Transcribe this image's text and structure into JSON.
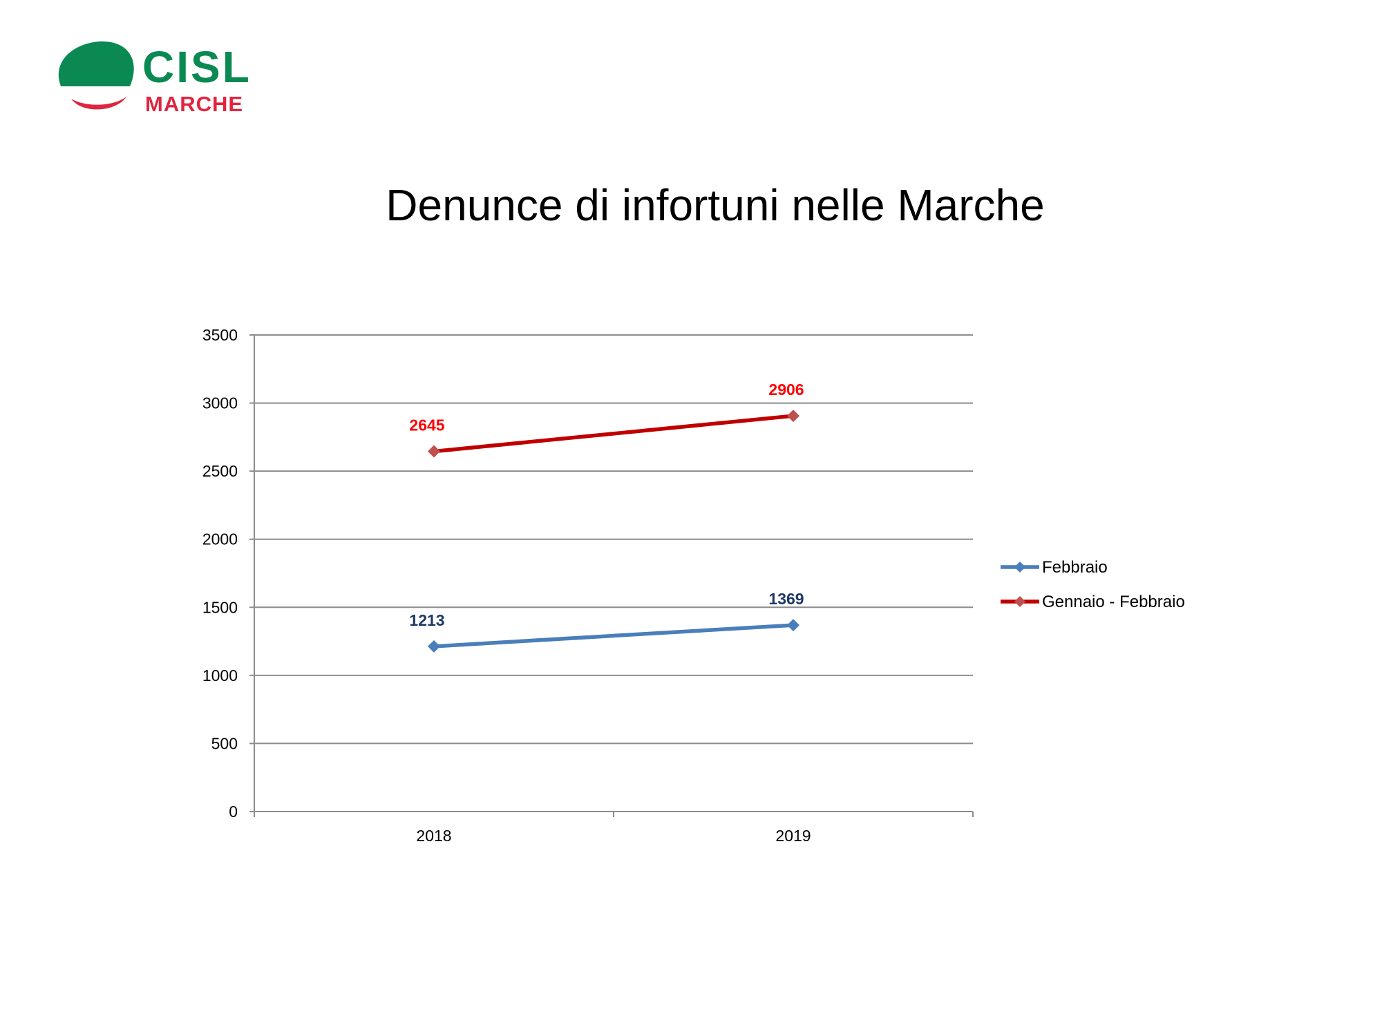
{
  "logo": {
    "name": "CISL",
    "region": "MARCHE"
  },
  "page": {
    "title": "Denunce di infortuni nelle Marche"
  },
  "chart_data": {
    "type": "line",
    "title": "",
    "xlabel": "",
    "ylabel": "",
    "categories": [
      "2018",
      "2019"
    ],
    "ylim": [
      0,
      3500
    ],
    "yticks": [
      0,
      500,
      1000,
      1500,
      2000,
      2500,
      3000,
      3500
    ],
    "grid": true,
    "legend": "right",
    "series": [
      {
        "name": "Febbraio",
        "values": [
          1213,
          1369
        ],
        "color": "#4a7ebb",
        "label_color": "#1f3864"
      },
      {
        "name": "Gennaio - Febbraio",
        "values": [
          2645,
          2906
        ],
        "color": "#c00000",
        "label_color": "#ff0000"
      }
    ]
  }
}
